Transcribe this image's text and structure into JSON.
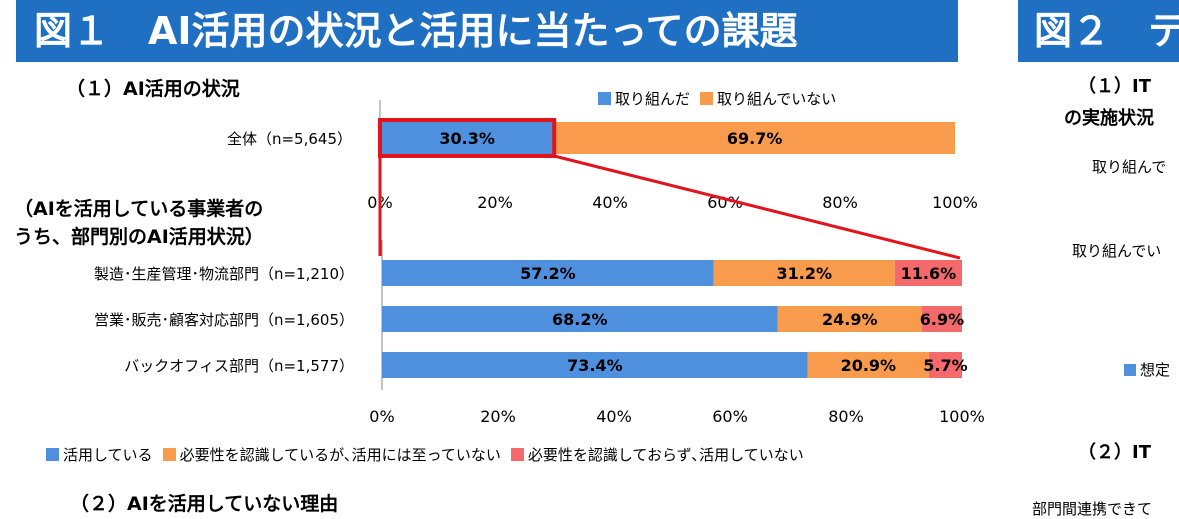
{
  "header": {
    "figure1_title": "図１　AI活用の状況と活用に当たっての課題",
    "figure2_title": "図２　テ"
  },
  "sections": {
    "s1_title": "（１）AI活用の状況",
    "s1_subtitle_line1": "（AIを活用している事業者の",
    "s1_subtitle_line2": "うち、部門別のAI活用状況）",
    "s2_title": "（２）AIを活用していない理由"
  },
  "right_panel": {
    "heading1_line1": "（１）IT",
    "heading1_line2": "の実施状況",
    "label1": "取り組んで",
    "label2": "取り組んでい",
    "legend": "想定",
    "heading2": "（２）IT",
    "bottom_text": "部門間連携できて"
  },
  "colors": {
    "blue": "#4e8fde",
    "orange": "#f99b4c",
    "red": "#f4696b",
    "highlight": "#e3131b",
    "banner": "#1f6fc2"
  },
  "chart_data": [
    {
      "type": "bar",
      "orientation": "horizontal",
      "stacked": true,
      "categories": [
        "全体（n=5,645）"
      ],
      "series": [
        {
          "name": "取り組んだ",
          "values": [
            30.3
          ],
          "labels": [
            "30.3%"
          ]
        },
        {
          "name": "取り組んでいない",
          "values": [
            69.7
          ],
          "labels": [
            "69.7%"
          ]
        }
      ],
      "xlim": [
        0,
        100
      ],
      "xticks": [
        "0%",
        "20%",
        "40%",
        "60%",
        "80%",
        "100%"
      ],
      "legend": "top-right"
    },
    {
      "type": "bar",
      "orientation": "horizontal",
      "stacked": true,
      "categories": [
        "製造･生産管理･物流部門（n=1,210）",
        "営業･販売･顧客対応部門（n=1,605）",
        "バックオフィス部門（n=1,577）"
      ],
      "series": [
        {
          "name": "活用している",
          "values": [
            57.2,
            68.2,
            73.4
          ],
          "labels": [
            "57.2%",
            "68.2%",
            "73.4%"
          ]
        },
        {
          "name": "必要性を認識しているが､活用には至っていない",
          "values": [
            31.2,
            24.9,
            20.9
          ],
          "labels": [
            "31.2%",
            "24.9%",
            "20.9%"
          ]
        },
        {
          "name": "必要性を認識しておらず､活用していない",
          "values": [
            11.6,
            6.9,
            5.7
          ],
          "labels": [
            "11.6%",
            "6.9%",
            "5.7%"
          ]
        }
      ],
      "xlim": [
        0,
        100
      ],
      "xticks": [
        "0%",
        "20%",
        "40%",
        "60%",
        "80%",
        "100%"
      ],
      "legend": "bottom"
    }
  ]
}
